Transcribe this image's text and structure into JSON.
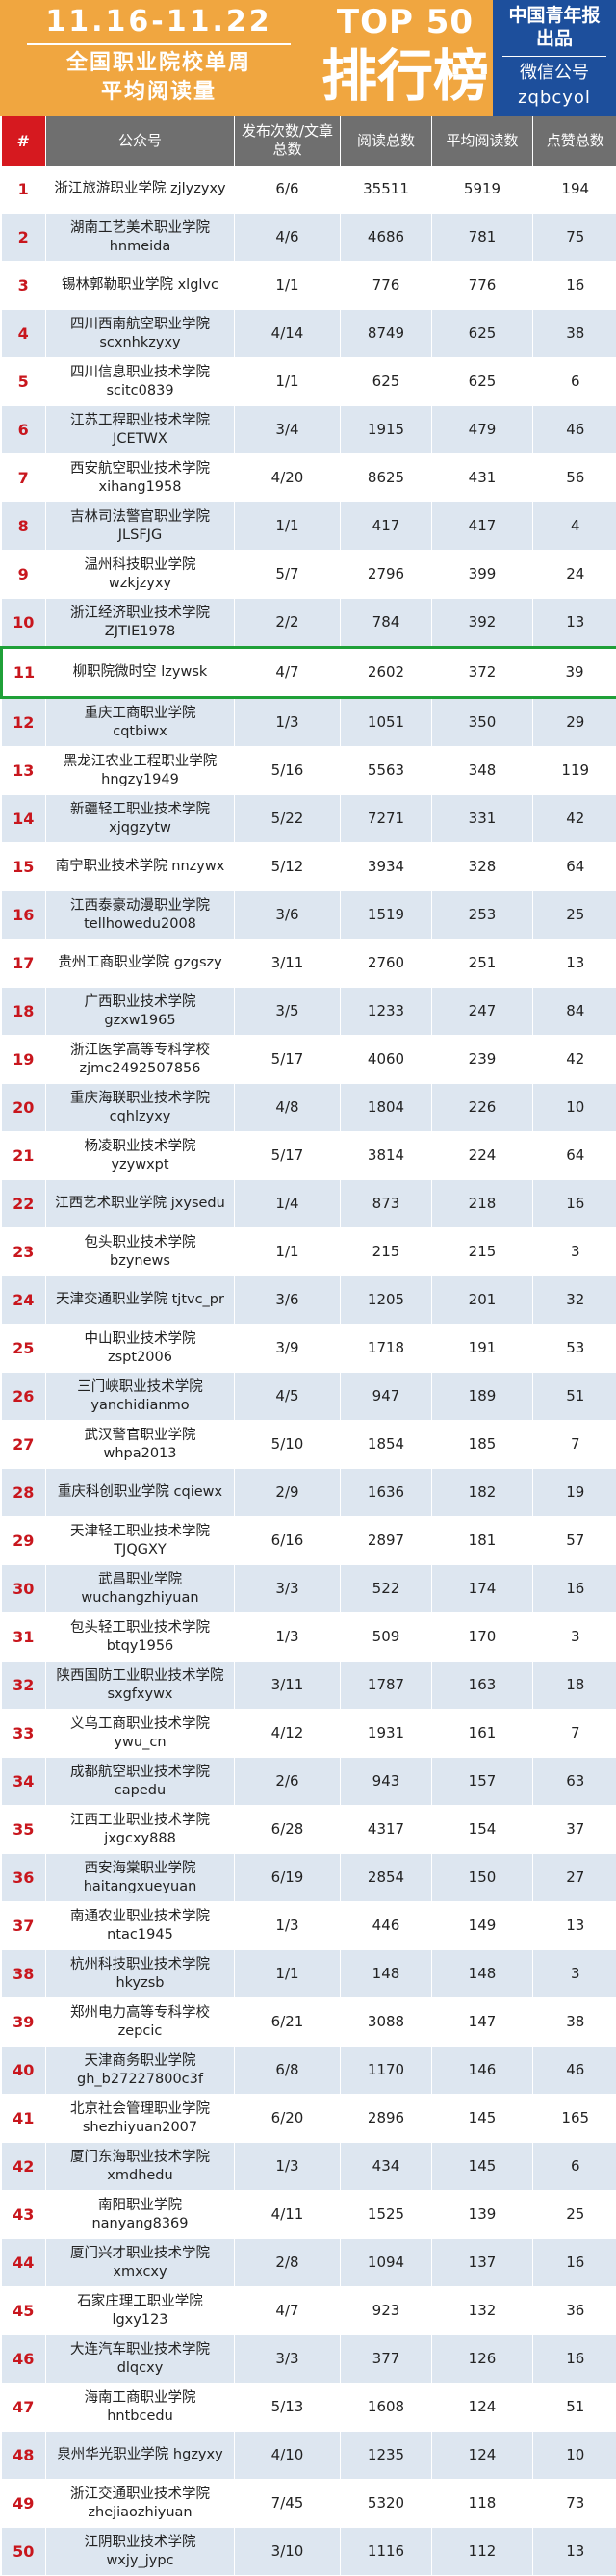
{
  "header": {
    "date_range": "11.16-11.22",
    "subtitle_line1": "全国职业院校单周",
    "subtitle_line2": "平均阅读量",
    "top_label": "TOP 50",
    "rank_label": "排行榜",
    "brand_line1": "中国青年报",
    "brand_line2": "出品",
    "wechat_label": "微信公号",
    "wechat_id": "zqbcyol"
  },
  "columns": {
    "rank": "#",
    "account": "公众号",
    "posts": "发布次数/文章总数",
    "total_reads": "阅读总数",
    "avg_reads": "平均阅读数",
    "likes": "点赞总数"
  },
  "highlight_rank": 11,
  "rows": [
    {
      "rank": "1",
      "name": "浙江旅游职业学院 zjlyzyxy",
      "handle": "",
      "posts": "6/6",
      "total": "35511",
      "avg": "5919",
      "likes": "194"
    },
    {
      "rank": "2",
      "name": "湖南工艺美术职业学院",
      "handle": "hnmeida",
      "posts": "4/6",
      "total": "4686",
      "avg": "781",
      "likes": "75"
    },
    {
      "rank": "3",
      "name": "锡林郭勒职业学院 xlglvc",
      "handle": "",
      "posts": "1/1",
      "total": "776",
      "avg": "776",
      "likes": "16"
    },
    {
      "rank": "4",
      "name": "四川西南航空职业学院",
      "handle": "scxnhkzyxy",
      "posts": "4/14",
      "total": "8749",
      "avg": "625",
      "likes": "38"
    },
    {
      "rank": "5",
      "name": "四川信息职业技术学院",
      "handle": "scitc0839",
      "posts": "1/1",
      "total": "625",
      "avg": "625",
      "likes": "6"
    },
    {
      "rank": "6",
      "name": "江苏工程职业技术学院",
      "handle": "JCETWX",
      "posts": "3/4",
      "total": "1915",
      "avg": "479",
      "likes": "46"
    },
    {
      "rank": "7",
      "name": "西安航空职业技术学院",
      "handle": "xihang1958",
      "posts": "4/20",
      "total": "8625",
      "avg": "431",
      "likes": "56"
    },
    {
      "rank": "8",
      "name": "吉林司法警官职业学院",
      "handle": "JLSFJG",
      "posts": "1/1",
      "total": "417",
      "avg": "417",
      "likes": "4"
    },
    {
      "rank": "9",
      "name": "温州科技职业学院",
      "handle": "wzkjzyxy",
      "posts": "5/7",
      "total": "2796",
      "avg": "399",
      "likes": "24"
    },
    {
      "rank": "10",
      "name": "浙江经济职业技术学院",
      "handle": "ZJTIE1978",
      "posts": "2/2",
      "total": "784",
      "avg": "392",
      "likes": "13"
    },
    {
      "rank": "11",
      "name": "柳职院微时空 lzywsk",
      "handle": "",
      "posts": "4/7",
      "total": "2602",
      "avg": "372",
      "likes": "39"
    },
    {
      "rank": "12",
      "name": "重庆工商职业学院",
      "handle": "cqtbiwx",
      "posts": "1/3",
      "total": "1051",
      "avg": "350",
      "likes": "29"
    },
    {
      "rank": "13",
      "name": "黑龙江农业工程职业学院",
      "handle": "hngzy1949",
      "posts": "5/16",
      "total": "5563",
      "avg": "348",
      "likes": "119"
    },
    {
      "rank": "14",
      "name": "新疆轻工职业技术学院",
      "handle": "xjqgzytw",
      "posts": "5/22",
      "total": "7271",
      "avg": "331",
      "likes": "42"
    },
    {
      "rank": "15",
      "name": "南宁职业技术学院 nnzywx",
      "handle": "",
      "posts": "5/12",
      "total": "3934",
      "avg": "328",
      "likes": "64"
    },
    {
      "rank": "16",
      "name": "江西泰豪动漫职业学院",
      "handle": "tellhowedu2008",
      "posts": "3/6",
      "total": "1519",
      "avg": "253",
      "likes": "25"
    },
    {
      "rank": "17",
      "name": "贵州工商职业学院 gzgszy",
      "handle": "",
      "posts": "3/11",
      "total": "2760",
      "avg": "251",
      "likes": "13"
    },
    {
      "rank": "18",
      "name": "广西职业技术学院",
      "handle": "gzxw1965",
      "posts": "3/5",
      "total": "1233",
      "avg": "247",
      "likes": "84"
    },
    {
      "rank": "19",
      "name": "浙江医学高等专科学校",
      "handle": "zjmc2492507856",
      "posts": "5/17",
      "total": "4060",
      "avg": "239",
      "likes": "42"
    },
    {
      "rank": "20",
      "name": "重庆海联职业技术学院",
      "handle": "cqhlzyxy",
      "posts": "4/8",
      "total": "1804",
      "avg": "226",
      "likes": "10"
    },
    {
      "rank": "21",
      "name": "杨凌职业技术学院",
      "handle": "yzywxpt",
      "posts": "5/17",
      "total": "3814",
      "avg": "224",
      "likes": "64"
    },
    {
      "rank": "22",
      "name": "江西艺术职业学院 jxysedu",
      "handle": "",
      "posts": "1/4",
      "total": "873",
      "avg": "218",
      "likes": "16"
    },
    {
      "rank": "23",
      "name": "包头职业技术学院",
      "handle": "bzynews",
      "posts": "1/1",
      "total": "215",
      "avg": "215",
      "likes": "3"
    },
    {
      "rank": "24",
      "name": "天津交通职业学院 tjtvc_pr",
      "handle": "",
      "posts": "3/6",
      "total": "1205",
      "avg": "201",
      "likes": "32"
    },
    {
      "rank": "25",
      "name": "中山职业技术学院",
      "handle": "zspt2006",
      "posts": "3/9",
      "total": "1718",
      "avg": "191",
      "likes": "53"
    },
    {
      "rank": "26",
      "name": "三门峡职业技术学院",
      "handle": "yanchidianmo",
      "posts": "4/5",
      "total": "947",
      "avg": "189",
      "likes": "51"
    },
    {
      "rank": "27",
      "name": "武汉警官职业学院",
      "handle": "whpa2013",
      "posts": "5/10",
      "total": "1854",
      "avg": "185",
      "likes": "7"
    },
    {
      "rank": "28",
      "name": "重庆科创职业学院 cqiewx",
      "handle": "",
      "posts": "2/9",
      "total": "1636",
      "avg": "182",
      "likes": "19"
    },
    {
      "rank": "29",
      "name": "天津轻工职业技术学院",
      "handle": "TJQGXY",
      "posts": "6/16",
      "total": "2897",
      "avg": "181",
      "likes": "57"
    },
    {
      "rank": "30",
      "name": "武昌职业学院",
      "handle": "wuchangzhiyuan",
      "posts": "3/3",
      "total": "522",
      "avg": "174",
      "likes": "16"
    },
    {
      "rank": "31",
      "name": "包头轻工职业技术学院",
      "handle": "btqy1956",
      "posts": "1/3",
      "total": "509",
      "avg": "170",
      "likes": "3"
    },
    {
      "rank": "32",
      "name": "陕西国防工业职业技术学院",
      "handle": "sxgfxywx",
      "posts": "3/11",
      "total": "1787",
      "avg": "163",
      "likes": "18"
    },
    {
      "rank": "33",
      "name": "义乌工商职业技术学院",
      "handle": "ywu_cn",
      "posts": "4/12",
      "total": "1931",
      "avg": "161",
      "likes": "7"
    },
    {
      "rank": "34",
      "name": "成都航空职业技术学院",
      "handle": "capedu",
      "posts": "2/6",
      "total": "943",
      "avg": "157",
      "likes": "63"
    },
    {
      "rank": "35",
      "name": "江西工业职业技术学院",
      "handle": "jxgcxy888",
      "posts": "6/28",
      "total": "4317",
      "avg": "154",
      "likes": "37"
    },
    {
      "rank": "36",
      "name": "西安海棠职业学院",
      "handle": "haitangxueyuan",
      "posts": "6/19",
      "total": "2854",
      "avg": "150",
      "likes": "27"
    },
    {
      "rank": "37",
      "name": "南通农业职业技术学院",
      "handle": "ntac1945",
      "posts": "1/3",
      "total": "446",
      "avg": "149",
      "likes": "13"
    },
    {
      "rank": "38",
      "name": "杭州科技职业技术学院",
      "handle": "hkyzsb",
      "posts": "1/1",
      "total": "148",
      "avg": "148",
      "likes": "3"
    },
    {
      "rank": "39",
      "name": "郑州电力高等专科学校",
      "handle": "zepcic",
      "posts": "6/21",
      "total": "3088",
      "avg": "147",
      "likes": "38"
    },
    {
      "rank": "40",
      "name": "天津商务职业学院",
      "handle": "gh_b27227800c3f",
      "posts": "6/8",
      "total": "1170",
      "avg": "146",
      "likes": "46"
    },
    {
      "rank": "41",
      "name": "北京社会管理职业学院",
      "handle": "shezhiyuan2007",
      "posts": "6/20",
      "total": "2896",
      "avg": "145",
      "likes": "165"
    },
    {
      "rank": "42",
      "name": "厦门东海职业技术学院",
      "handle": "xmdhedu",
      "posts": "1/3",
      "total": "434",
      "avg": "145",
      "likes": "6"
    },
    {
      "rank": "43",
      "name": "南阳职业学院",
      "handle": "nanyang8369",
      "posts": "4/11",
      "total": "1525",
      "avg": "139",
      "likes": "25"
    },
    {
      "rank": "44",
      "name": "厦门兴才职业技术学院",
      "handle": "xmxcxy",
      "posts": "2/8",
      "total": "1094",
      "avg": "137",
      "likes": "16"
    },
    {
      "rank": "45",
      "name": "石家庄理工职业学院",
      "handle": "lgxy123",
      "posts": "4/7",
      "total": "923",
      "avg": "132",
      "likes": "36"
    },
    {
      "rank": "46",
      "name": "大连汽车职业技术学院",
      "handle": "dlqcxy",
      "posts": "3/3",
      "total": "377",
      "avg": "126",
      "likes": "16"
    },
    {
      "rank": "47",
      "name": "海南工商职业学院",
      "handle": "hntbcedu",
      "posts": "5/13",
      "total": "1608",
      "avg": "124",
      "likes": "51"
    },
    {
      "rank": "48",
      "name": "泉州华光职业学院 hgzyxy",
      "handle": "",
      "posts": "4/10",
      "total": "1235",
      "avg": "124",
      "likes": "10"
    },
    {
      "rank": "49",
      "name": "浙江交通职业技术学院",
      "handle": "zhejiaozhiyuan",
      "posts": "7/45",
      "total": "5320",
      "avg": "118",
      "likes": "73"
    },
    {
      "rank": "50",
      "name": "江阴职业技术学院",
      "handle": "wxjy_jypc",
      "posts": "3/10",
      "total": "1116",
      "avg": "112",
      "likes": "13"
    }
  ]
}
